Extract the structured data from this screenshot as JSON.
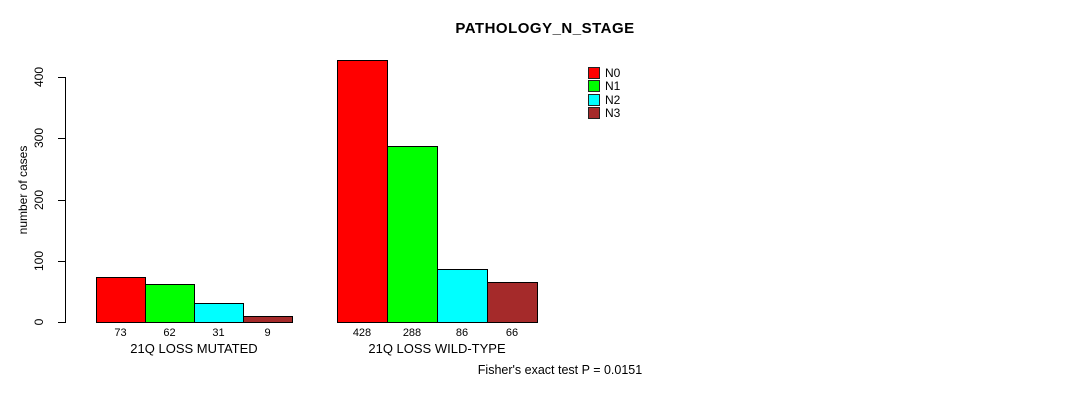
{
  "chart_data": {
    "type": "bar",
    "title": "PATHOLOGY_N_STAGE",
    "ylabel": "number of cases",
    "xlabel": "",
    "ylim": [
      0,
      400
    ],
    "yticks": [
      0,
      100,
      200,
      300,
      400
    ],
    "grid": false,
    "legend_position": "top-right",
    "categories": [
      "21Q LOSS MUTATED",
      "21Q LOSS WILD-TYPE"
    ],
    "series": [
      {
        "name": "N0",
        "color": "#FF0000",
        "values": [
          73,
          428
        ]
      },
      {
        "name": "N1",
        "color": "#00FF00",
        "values": [
          62,
          288
        ]
      },
      {
        "name": "N2",
        "color": "#00FFFF",
        "values": [
          31,
          86
        ]
      },
      {
        "name": "N3",
        "color": "#A52A2A",
        "values": [
          9,
          66
        ]
      }
    ],
    "bar_value_labels": [
      [
        "73",
        "62",
        "31",
        "9"
      ],
      [
        "428",
        "288",
        "86",
        "66"
      ]
    ],
    "annotation": "Fisher's exact test P = 0.0151"
  }
}
